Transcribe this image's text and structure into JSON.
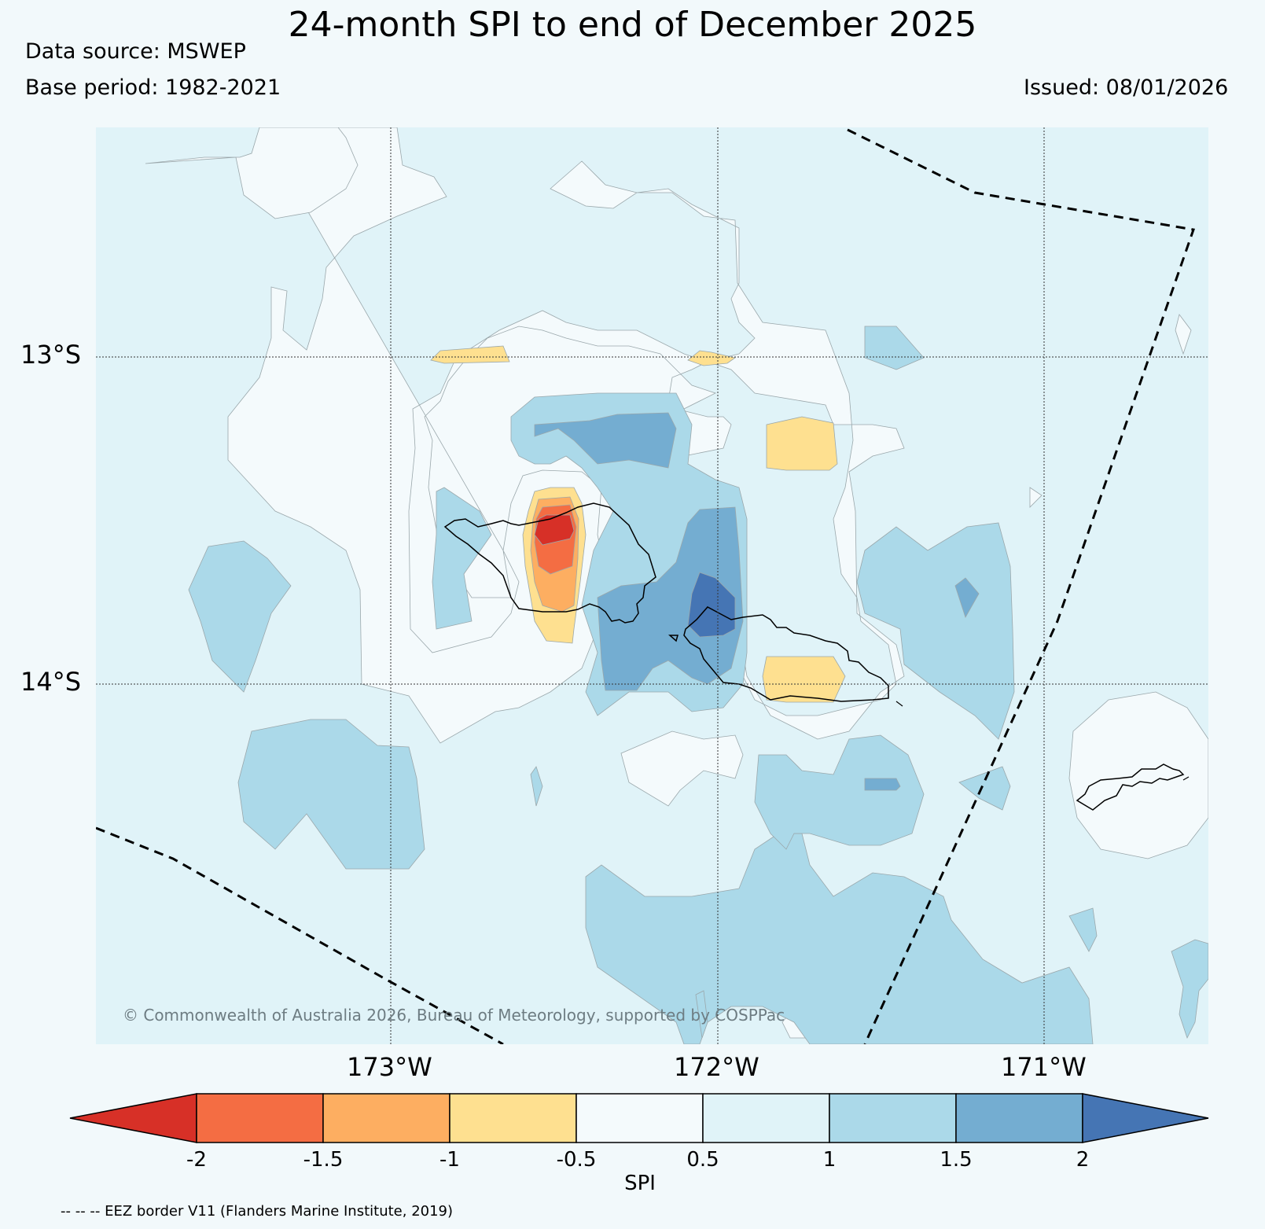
{
  "title": "24-month SPI to end of December 2025",
  "data_source": "Data source: MSWEP",
  "base_period": "Base period: 1982-2021",
  "issued": "Issued: 08/01/2026",
  "lat_ticks": [
    "13°S",
    "14°S"
  ],
  "lon_ticks": [
    "173°W",
    "172°W",
    "171°W"
  ],
  "copyright": "© Commonwealth of Australia 2026, Bureau of Meteorology, supported by COSPPac",
  "colorbar": {
    "label": "SPI",
    "tick_labels": [
      "-2",
      "-1.5",
      "-1",
      "-0.5",
      "0.5",
      "1",
      "1.5",
      "2"
    ],
    "colors": {
      "below_-2": "#d73027",
      "-2_to_-1.5": "#f46d43",
      "-1.5_to_-1": "#fdae61",
      "-1_to_-0.5": "#fee090",
      "-0.5_to_0.5": "#f4fafc",
      "0.5_to_1": "#e0f3f8",
      "1_to_1.5": "#abd9e9",
      "1.5_to_2": "#74add1",
      "above_2": "#4575b4"
    }
  },
  "footnote": "-- -- -- EEZ border V11 (Flanders Marine Institute, 2019)"
}
